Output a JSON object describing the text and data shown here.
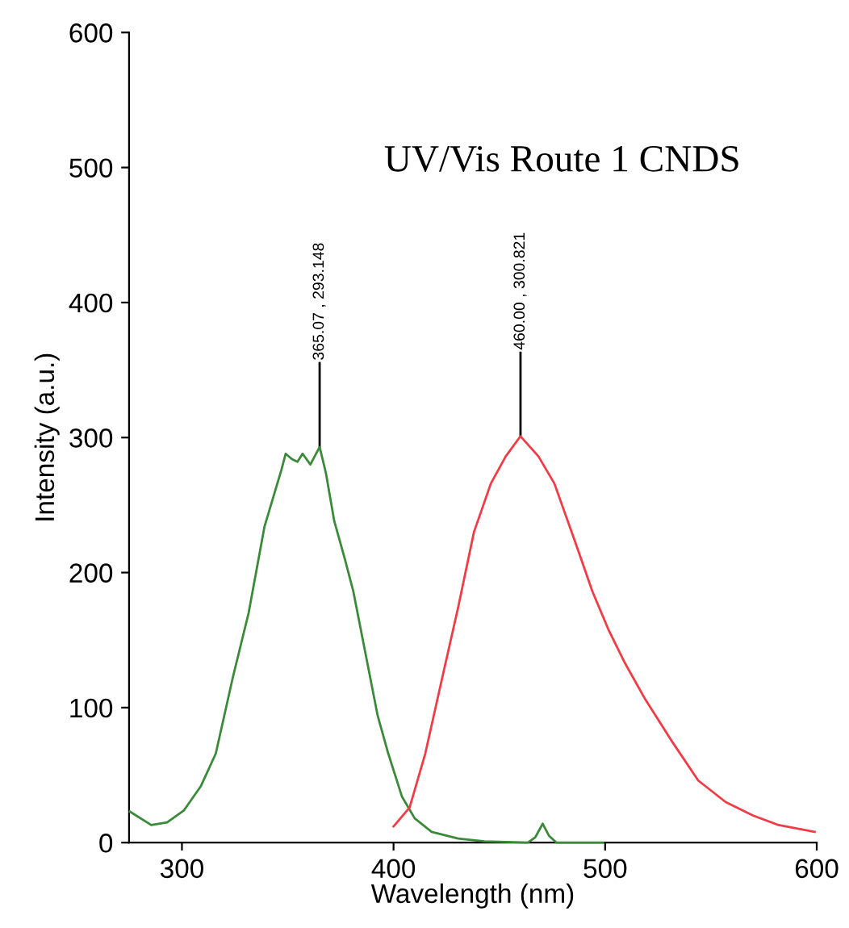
{
  "chart_data": {
    "type": "line",
    "title": "UV/Vis Route 1 CNDS",
    "xlabel": "Wavelength (nm)",
    "ylabel": "Intensity (a.u.)",
    "xlim": [
      275,
      600
    ],
    "xticks": [
      300,
      400,
      500,
      600
    ],
    "ylim": [
      0,
      600
    ],
    "yticks": [
      0,
      100,
      200,
      300,
      400,
      500,
      600
    ],
    "grid": false,
    "legend": false,
    "series": [
      {
        "color": "#3a8a3a",
        "x": [
          275.4,
          285.5,
          293,
          301,
          309,
          316,
          324,
          331.5,
          339,
          347,
          349,
          352,
          354.6,
          357,
          360.7,
          365.07,
          368,
          372,
          377,
          381,
          387,
          392.5,
          397.5,
          404,
          410,
          418,
          430.5,
          443,
          463.5,
          467,
          470.5,
          473.5,
          477,
          499
        ],
        "values": [
          23,
          13,
          15,
          24,
          42,
          66,
          122,
          170,
          234,
          276,
          288,
          284,
          282,
          288,
          280,
          293,
          274,
          238,
          210,
          186,
          138,
          94,
          66,
          34,
          18,
          8,
          3,
          1,
          0,
          4,
          14,
          5,
          0,
          0
        ]
      },
      {
        "color": "#f03c46",
        "x": [
          400,
          407.6,
          415,
          423,
          430.5,
          438,
          446,
          453,
          460,
          468.5,
          476,
          486,
          494,
          501.5,
          509,
          519,
          532,
          544,
          557,
          570,
          582,
          599
        ],
        "values": [
          12,
          26,
          66,
          122,
          174,
          230,
          266,
          286,
          301,
          286,
          266,
          222,
          186,
          158,
          134,
          106,
          74,
          46,
          30,
          20,
          13,
          8
        ]
      }
    ],
    "annotations": [
      {
        "text": "365.07 , 293.148",
        "x": 365.07,
        "y": 293.148
      },
      {
        "text": "460.00 , 300.821",
        "x": 460,
        "y": 300.821
      }
    ]
  }
}
